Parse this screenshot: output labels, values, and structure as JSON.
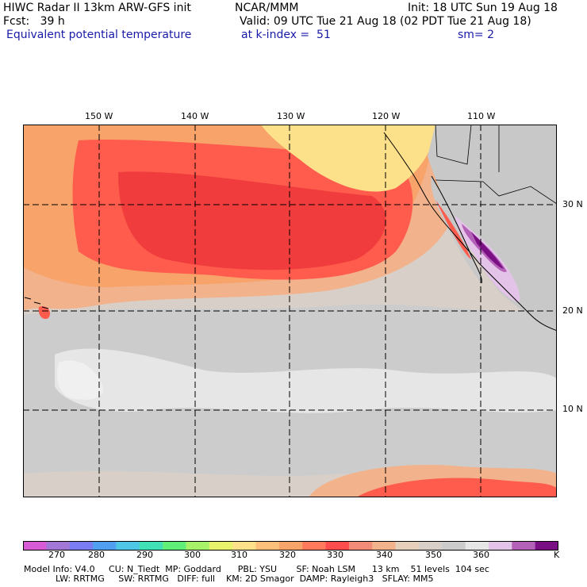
{
  "header": {
    "model_title": "HIWC Radar II 13km ARW-GFS init",
    "org": "NCAR/MMM",
    "init": "Init: 18 UTC Sun 19 Aug 18",
    "fcst": "Fcst:   39 h",
    "valid": "Valid: 09 UTC Tue 21 Aug 18 (02 PDT Tue 21 Aug 18)",
    "field": "Equivalent potential temperature",
    "level": "at k-index =  51",
    "smoothing": "sm= 2"
  },
  "map": {
    "lon_labels": [
      "150 W",
      "140 W",
      "130 W",
      "120 W",
      "110 W"
    ],
    "lat_labels": [
      "30 N",
      "20 N",
      "10 N"
    ],
    "colors": {
      "land": "#c8c8c8",
      "cool": "#e2e2e2",
      "mid": "#d9c5b4",
      "warm1": "#f2b28c",
      "warm2": "#f7a36a",
      "hot": "#ff5c4d",
      "hotter": "#f03c3c",
      "yellow": "#fde08a",
      "purple_light": "#e4c3e8",
      "purple_mid": "#b462b8",
      "purple_dark": "#7a0f84",
      "grid": "#000000"
    }
  },
  "colorbar": {
    "tick_labels": [
      "270",
      "280",
      "290",
      "300",
      "310",
      "320",
      "330",
      "340",
      "350",
      "360"
    ],
    "unit": "K",
    "colors": [
      "#d75bd4",
      "#a277d6",
      "#7a7cf2",
      "#4f9ff2",
      "#4fc7e6",
      "#42e0b6",
      "#60f07a",
      "#a8f26a",
      "#e8f26a",
      "#fde08a",
      "#fdc07a",
      "#f7a36a",
      "#ff7a5c",
      "#ff4d4d",
      "#f28c78",
      "#f2b28c",
      "#e6d0bc",
      "#d8d0c8",
      "#cccccc",
      "#e6e6e6",
      "#e4c3e8",
      "#b462b8",
      "#7a0f84"
    ]
  },
  "footer": {
    "line1": "Model Info: V4.0     CU: N_Tiedt  MP: Goddard      PBL: YSU       SF: Noah LSM      13 km    51 levels  104 sec",
    "line2": "LW: RRTMG     SW: RRTMG   DIFF: full    KM: 2D Smagor  DAMP: Rayleigh3   SFLAY: MM5"
  }
}
